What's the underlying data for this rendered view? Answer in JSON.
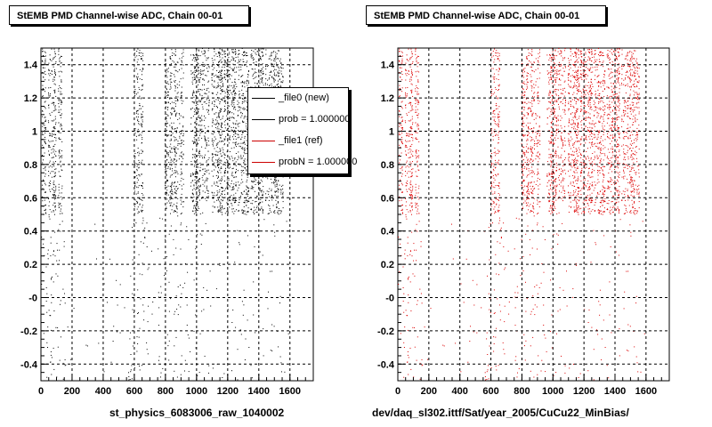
{
  "panels": {
    "left": {
      "title": "StEMB PMD Channel-wise ADC, Chain 00-01",
      "run_label": "st_physics_6083006_raw_1040002"
    },
    "right": {
      "title": "StEMB PMD Channel-wise ADC, Chain 00-01",
      "run_label": "dev/daq_sl302.ittf/Sat/year_2005/CuCu22_MinBias/"
    }
  },
  "legend": {
    "entries": [
      {
        "label": "_file0 (new)",
        "color": "#000000"
      },
      {
        "label": "prob = 1.000000",
        "color": "#000000"
      },
      {
        "label": "_file1 (ref)",
        "color": "#cc0000"
      },
      {
        "label": "probN = 1.000000",
        "color": "#cc0000"
      }
    ]
  },
  "chart_data": [
    {
      "type": "scatter",
      "title": "StEMB PMD Channel-wise ADC, Chain 00-01",
      "xlabel": "st_physics_6083006_raw_1040002",
      "ylabel": "",
      "xlim": [
        0,
        1750
      ],
      "ylim": [
        -0.5,
        1.5
      ],
      "xticks": [
        "0",
        "200",
        "400",
        "600",
        "800",
        "1000",
        "1200",
        "1400",
        "1600"
      ],
      "yticks": [
        "-0.4",
        "-0.2",
        "-0",
        "0.2",
        "0.4",
        "0.6",
        "0.8",
        "1",
        "1.2",
        "1.4"
      ],
      "grid": true,
      "legend_position": "top-right",
      "series": [
        {
          "name": "_file0 (new)",
          "color": "#000000",
          "dense_channel_ranges": [
            [
              0,
              130
            ],
            [
              600,
              650
            ],
            [
              790,
              910
            ],
            [
              960,
              1550
            ]
          ],
          "dense_y_range": [
            0.5,
            1.5
          ],
          "sparse_y_range": [
            -0.5,
            0.5
          ]
        }
      ]
    },
    {
      "type": "scatter",
      "title": "StEMB PMD Channel-wise ADC, Chain 00-01",
      "xlabel": "dev/daq_sl302.ittf/Sat/year_2005/CuCu22_MinBias/",
      "ylabel": "",
      "xlim": [
        0,
        1750
      ],
      "ylim": [
        -0.5,
        1.5
      ],
      "xticks": [
        "0",
        "200",
        "400",
        "600",
        "800",
        "1000",
        "1200",
        "1400",
        "1600"
      ],
      "yticks": [
        "-0.4",
        "-0.2",
        "-0",
        "0.2",
        "0.4",
        "0.6",
        "0.8",
        "1",
        "1.2",
        "1.4"
      ],
      "grid": true,
      "series": [
        {
          "name": "_file1 (ref)",
          "color": "#dd0000",
          "dense_channel_ranges": [
            [
              0,
              130
            ],
            [
              600,
              650
            ],
            [
              790,
              910
            ],
            [
              960,
              1550
            ]
          ],
          "dense_y_range": [
            0.5,
            1.5
          ],
          "sparse_y_range": [
            -0.5,
            0.5
          ]
        }
      ]
    }
  ]
}
